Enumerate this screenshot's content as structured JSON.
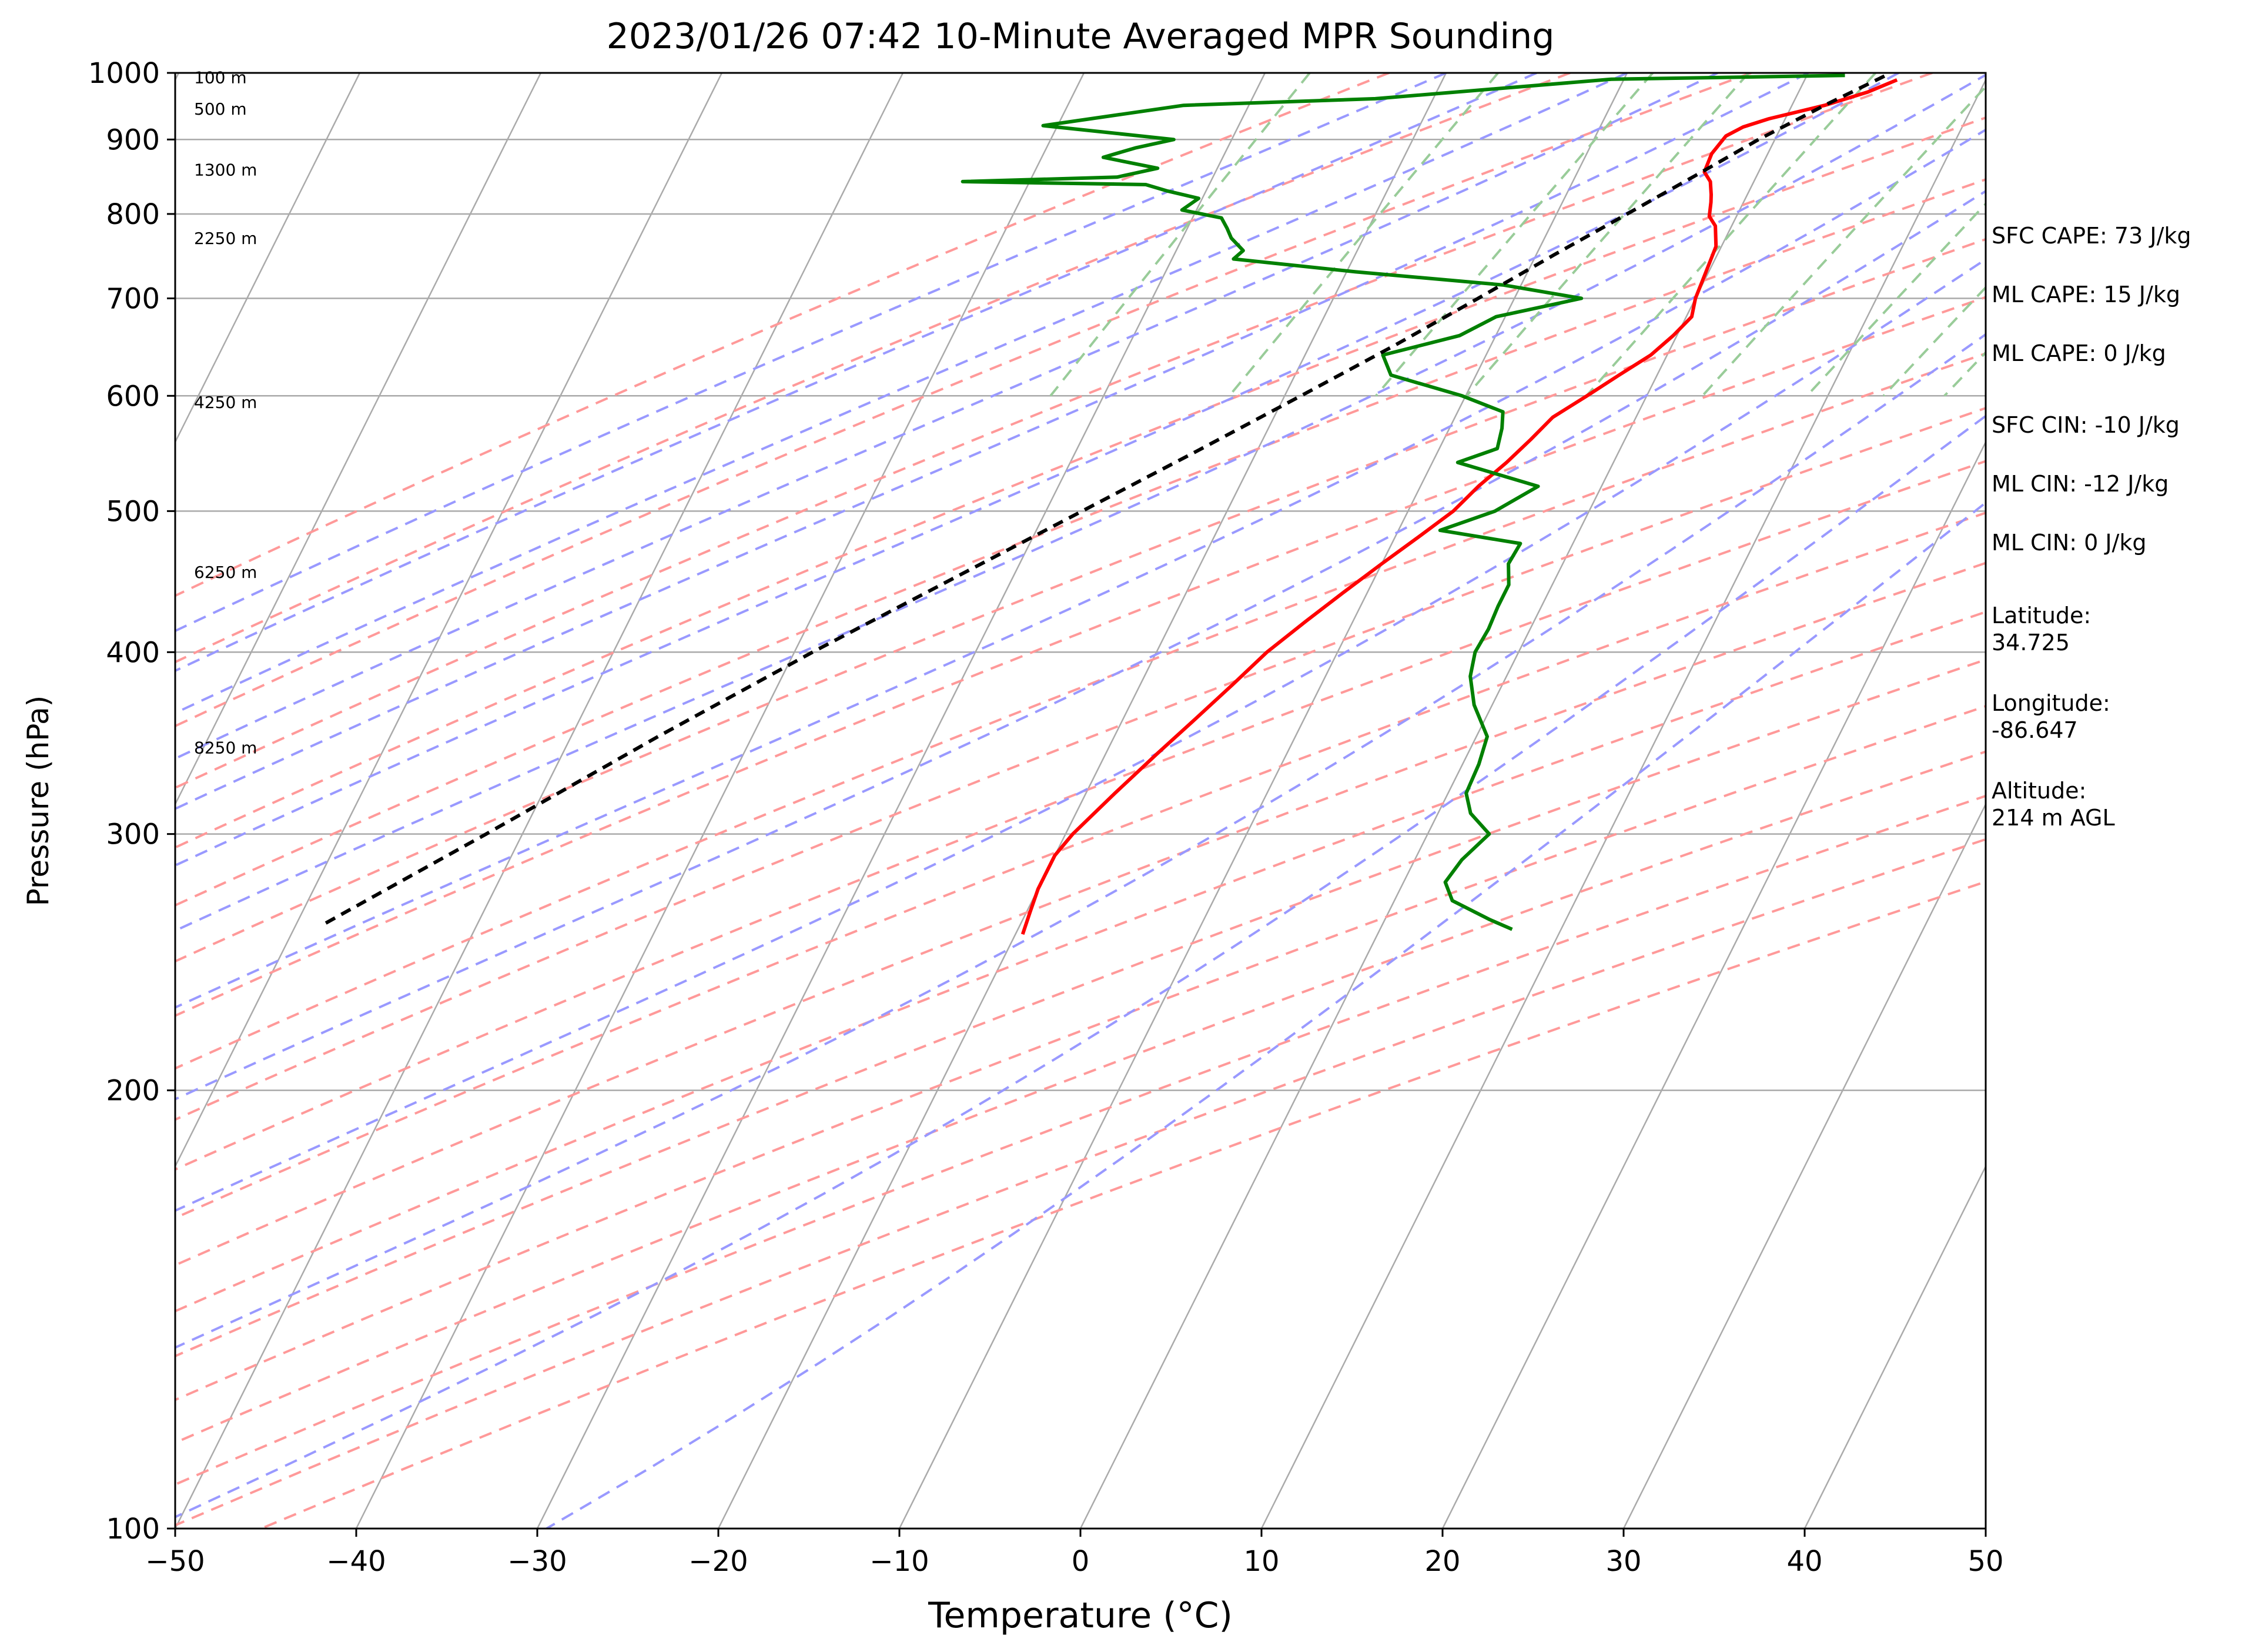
{
  "chart_data": {
    "type": "line",
    "title": "2023/01/26 07:42 10-Minute Averaged MPR Sounding",
    "xlabel": "Temperature (°C)",
    "ylabel": "Pressure (hPa)",
    "xlim": [
      -50,
      50
    ],
    "ylim": [
      1000,
      100
    ],
    "y_scale": "log",
    "skew": "skew-T log-P",
    "grid": true,
    "x_ticks": [
      -50,
      -40,
      -30,
      -20,
      -10,
      0,
      10,
      20,
      30,
      40,
      50
    ],
    "x_tick_labels": [
      "−50",
      "−40",
      "−30",
      "−20",
      "−10",
      "0",
      "10",
      "20",
      "30",
      "40",
      "50"
    ],
    "y_ticks": [
      1000,
      900,
      800,
      700,
      600,
      500,
      400,
      300,
      200,
      100
    ],
    "y_tick_labels": [
      "1000",
      "900",
      "800",
      "700",
      "600",
      "500",
      "400",
      "300",
      "200",
      "100"
    ],
    "height_labels": [
      {
        "text": "100 m",
        "p": 993
      },
      {
        "text": "500 m",
        "p": 945
      },
      {
        "text": "1300 m",
        "p": 858
      },
      {
        "text": "2250 m",
        "p": 770
      },
      {
        "text": "4250 m",
        "p": 594
      },
      {
        "text": "6250 m",
        "p": 454
      },
      {
        "text": "8250 m",
        "p": 344
      }
    ],
    "series": [
      {
        "color": "#ff0000",
        "points": [
          [
            989,
            5.1
          ],
          [
            970,
            3.8
          ],
          [
            950,
            1.8
          ],
          [
            930,
            -0.9
          ],
          [
            918,
            -2.1
          ],
          [
            905,
            -2.8
          ],
          [
            880,
            -3.1
          ],
          [
            855,
            -3.0
          ],
          [
            842,
            -2.4
          ],
          [
            825,
            -2.0
          ],
          [
            815,
            -1.8
          ],
          [
            797,
            -1.5
          ],
          [
            785,
            -0.9
          ],
          [
            760,
            -0.3
          ],
          [
            740,
            -0.2
          ],
          [
            720,
            -0.1
          ],
          [
            700,
            0.0
          ],
          [
            680,
            0.3
          ],
          [
            660,
            -0.2
          ],
          [
            640,
            -0.9
          ],
          [
            620,
            -2.1
          ],
          [
            600,
            -3.3
          ],
          [
            580,
            -4.6
          ],
          [
            560,
            -5.2
          ],
          [
            540,
            -5.9
          ],
          [
            520,
            -6.8
          ],
          [
            500,
            -7.5
          ],
          [
            480,
            -8.7
          ],
          [
            460,
            -10.0
          ],
          [
            440,
            -11.3
          ],
          [
            420,
            -12.6
          ],
          [
            400,
            -13.9
          ],
          [
            380,
            -14.9
          ],
          [
            360,
            -16.0
          ],
          [
            340,
            -17.2
          ],
          [
            320,
            -18.4
          ],
          [
            300,
            -19.6
          ],
          [
            290,
            -20.0
          ],
          [
            275,
            -20.0
          ],
          [
            265,
            -19.8
          ],
          [
            256,
            -19.6
          ]
        ]
      },
      {
        "color": "#008000",
        "points": [
          [
            996,
            2.1
          ],
          [
            990,
            -10.7
          ],
          [
            960,
            -23.2
          ],
          [
            950,
            -33.6
          ],
          [
            920,
            -40.8
          ],
          [
            900,
            -33.2
          ],
          [
            888,
            -35.1
          ],
          [
            875,
            -36.6
          ],
          [
            860,
            -33.3
          ],
          [
            848,
            -35.3
          ],
          [
            842,
            -43.7
          ],
          [
            838,
            -33.5
          ],
          [
            830,
            -32.2
          ],
          [
            820,
            -30.2
          ],
          [
            805,
            -30.8
          ],
          [
            795,
            -28.4
          ],
          [
            782,
            -27.8
          ],
          [
            770,
            -27.3
          ],
          [
            755,
            -26.3
          ],
          [
            745,
            -26.6
          ],
          [
            730,
            -19.5
          ],
          [
            715,
            -11.0
          ],
          [
            700,
            -6.3
          ],
          [
            680,
            -10.5
          ],
          [
            660,
            -12.0
          ],
          [
            640,
            -15.7
          ],
          [
            620,
            -14.7
          ],
          [
            600,
            -10.2
          ],
          [
            585,
            -7.5
          ],
          [
            570,
            -7.1
          ],
          [
            552,
            -6.8
          ],
          [
            540,
            -8.6
          ],
          [
            520,
            -3.5
          ],
          [
            500,
            -5.2
          ],
          [
            485,
            -7.7
          ],
          [
            475,
            -2.9
          ],
          [
            460,
            -3.0
          ],
          [
            445,
            -2.4
          ],
          [
            430,
            -2.4
          ],
          [
            415,
            -2.3
          ],
          [
            400,
            -2.4
          ],
          [
            385,
            -2.0
          ],
          [
            368,
            -1.0
          ],
          [
            350,
            0.6
          ],
          [
            335,
            0.9
          ],
          [
            320,
            1.0
          ],
          [
            310,
            1.8
          ],
          [
            300,
            3.4
          ],
          [
            288,
            2.6
          ],
          [
            278,
            2.3
          ],
          [
            270,
            3.2
          ],
          [
            262,
            5.8
          ],
          [
            258,
            7.3
          ]
        ]
      },
      {
        "color": "#000000",
        "dashed": true,
        "points": [
          [
            995,
            4.3
          ],
          [
            950,
            1.8
          ],
          [
            900,
            -0.9
          ],
          [
            850,
            -3.4
          ],
          [
            800,
            -6.1
          ],
          [
            750,
            -9.0
          ],
          [
            700,
            -12.0
          ],
          [
            650,
            -15.3
          ],
          [
            600,
            -19.1
          ],
          [
            550,
            -23.3
          ],
          [
            500,
            -28.0
          ],
          [
            450,
            -33.2
          ],
          [
            400,
            -39.0
          ],
          [
            350,
            -45.2
          ],
          [
            300,
            -52.0
          ],
          [
            260,
            -58.5
          ]
        ]
      }
    ],
    "info": {
      "sfc_cape": "SFC CAPE: 73 J/kg",
      "ml_cape": "ML CAPE: 15 J/kg",
      "ml_cape2": "ML CAPE: 0 J/kg",
      "sfc_cin": "SFC CIN: -10 J/kg",
      "ml_cin": "ML CIN: -12 J/kg",
      "ml_cin2": "ML CIN: 0 J/kg",
      "latitude": "Latitude:\n34.725",
      "longitude": "Longitude:\n-86.647",
      "altitude": "Altitude:\n214 m AGL"
    },
    "reference_line_colors": {
      "isotherms": "#aaaaaa",
      "dry_adiabats": "#ff9999",
      "moist_adiabats": "#9999ff",
      "mixing_ratio": "#99cc99"
    }
  }
}
